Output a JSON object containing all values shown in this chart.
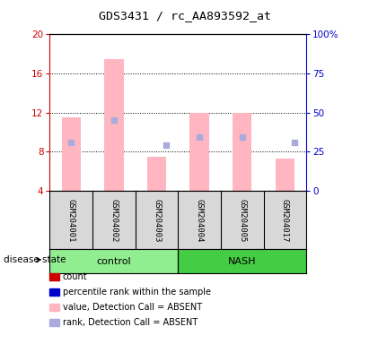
{
  "title": "GDS3431 / rc_AA893592_at",
  "samples": [
    "GSM204001",
    "GSM204002",
    "GSM204003",
    "GSM204004",
    "GSM204005",
    "GSM204017"
  ],
  "bar_color_absent": "#FFB6C1",
  "dot_color_absent": "#AAAADD",
  "left_axis_color": "#CC0000",
  "right_axis_color": "#0000CC",
  "bg_color": "#D8D8D8",
  "control_color": "#90EE90",
  "nash_color": "#44CC44",
  "ylim_left": [
    4,
    20
  ],
  "ylim_right": [
    0,
    100
  ],
  "yticks_left": [
    4,
    8,
    12,
    16,
    20
  ],
  "ytick_labels_right": [
    "0",
    "25",
    "50",
    "75",
    "100%"
  ],
  "bar_bottoms": [
    4,
    4,
    4,
    4,
    4,
    4
  ],
  "bar_tops": [
    11.5,
    17.5,
    7.5,
    12.0,
    12.0,
    7.3
  ],
  "rank_dots_y": [
    9.0,
    11.2,
    8.7,
    9.5,
    9.5,
    9.0
  ],
  "rank_dots_x_offset": [
    0.0,
    0.0,
    0.22,
    0.0,
    0.0,
    0.22
  ],
  "legend_items": [
    {
      "label": "count",
      "color": "#CC0000"
    },
    {
      "label": "percentile rank within the sample",
      "color": "#0000CC"
    },
    {
      "label": "value, Detection Call = ABSENT",
      "color": "#FFB6C1"
    },
    {
      "label": "rank, Detection Call = ABSENT",
      "color": "#AAAADD"
    }
  ],
  "disease_state_label": "disease state"
}
